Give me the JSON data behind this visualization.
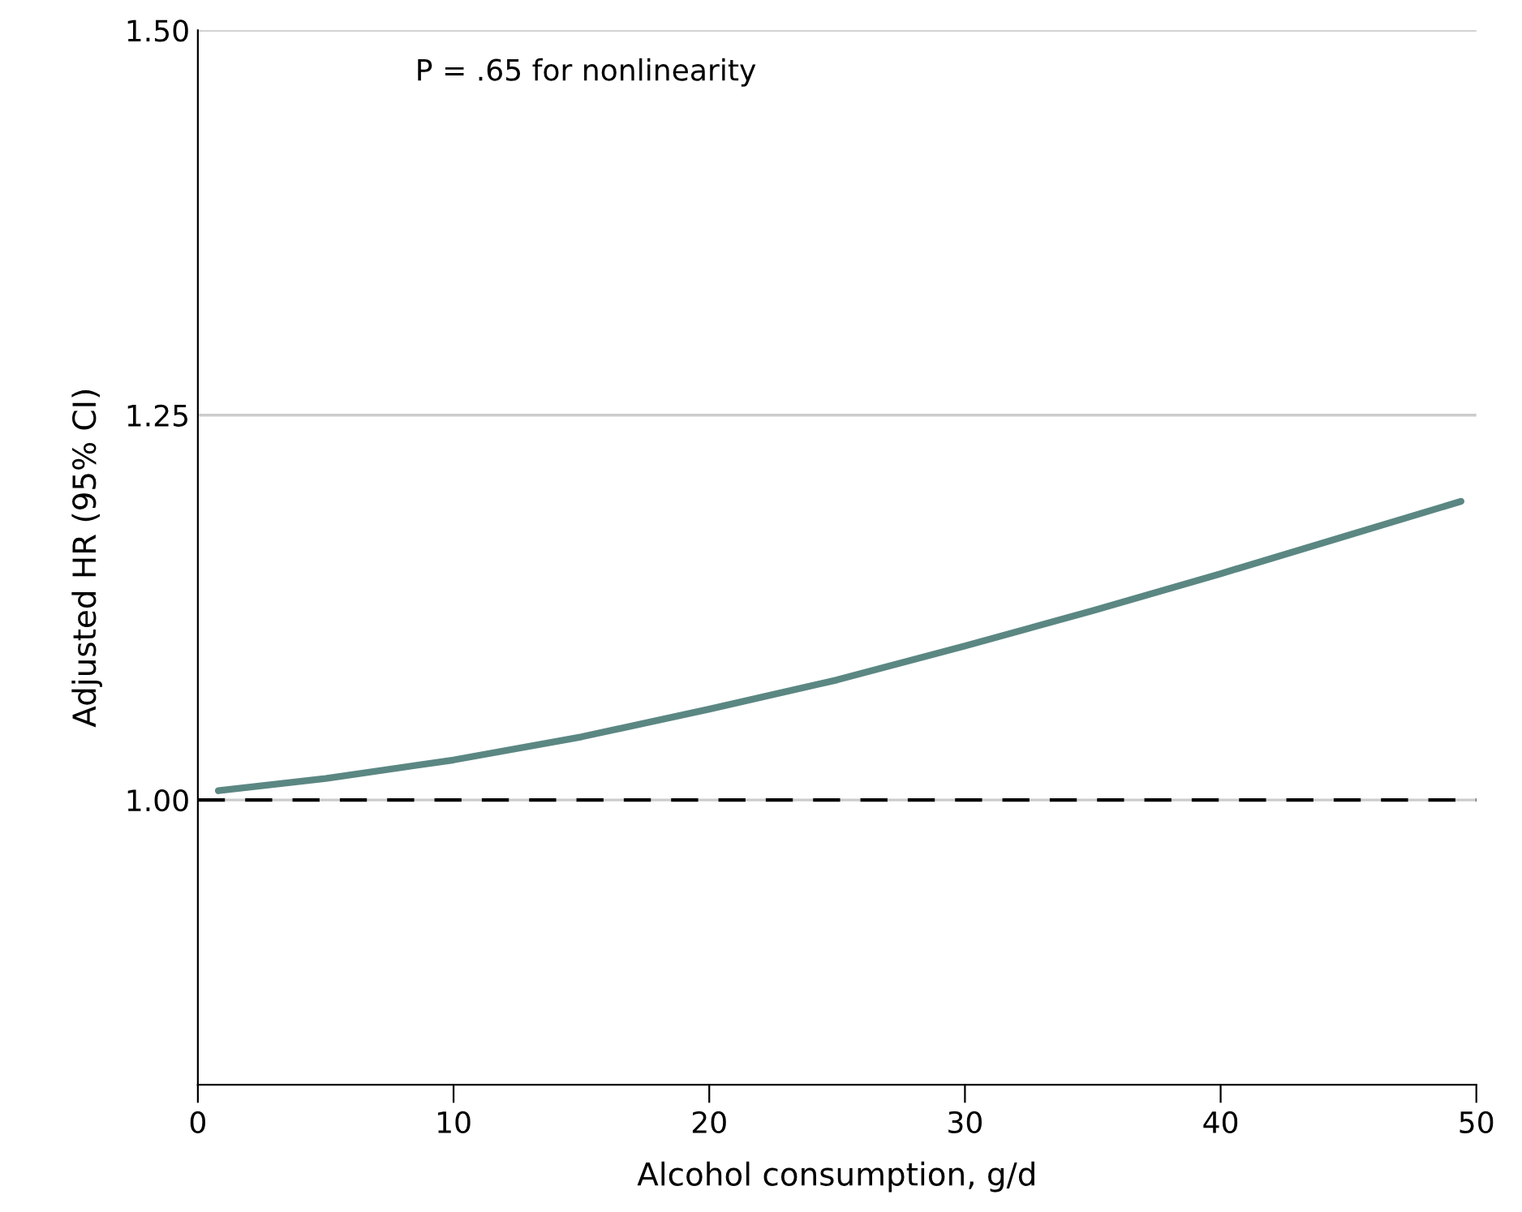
{
  "chart_data": {
    "type": "line",
    "xlabel": "Alcohol consumption, g/d",
    "ylabel": "Adjusted HR (95% CI)",
    "annotations": [
      "P = .65 for nonlinearity"
    ],
    "series": [
      {
        "color": "#5b8783",
        "x": [
          0.8,
          5,
          10,
          15,
          20,
          25,
          30,
          35,
          40,
          45,
          49.4
        ],
        "values": [
          1.006,
          1.014,
          1.026,
          1.041,
          1.059,
          1.078,
          1.1,
          1.123,
          1.147,
          1.172,
          1.194
        ]
      }
    ],
    "xlim": [
      0,
      50
    ],
    "xticks": [
      0,
      10,
      20,
      30,
      40,
      50
    ],
    "ylim": [
      0.815,
      1.5
    ],
    "yticks": [
      {
        "value": 1.0,
        "label": "1.00"
      },
      {
        "value": 1.25,
        "label": "1.25"
      },
      {
        "value": 1.5,
        "label": "1.50"
      }
    ],
    "grid": "y",
    "marker": "none",
    "line_style": "solid",
    "ref_lines": [
      {
        "axis": "y",
        "value": 1.0,
        "color": "#000000",
        "line_style": "dashed"
      }
    ]
  }
}
